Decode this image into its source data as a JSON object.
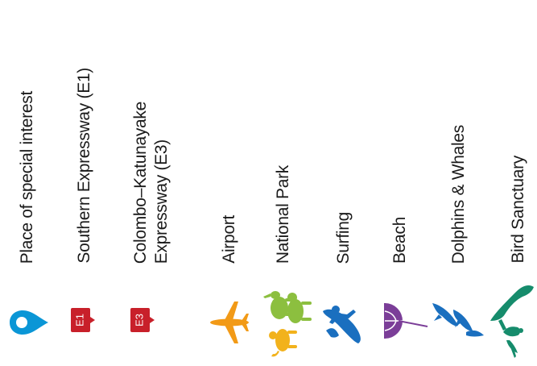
{
  "legend": {
    "items": [
      {
        "label": "Place of special interest",
        "icon": "map-pin-icon",
        "color": "#0a96d6"
      },
      {
        "label": "Southern Expressway (E1)",
        "icon": "e1-shield-icon",
        "color": "#c8202a",
        "badge": "E1"
      },
      {
        "label": "Colombo–Katunayake\nExpressway (E3)",
        "icon": "e3-shield-icon",
        "color": "#c8202a",
        "badge": "E3"
      },
      {
        "label": "Airport",
        "icon": "airplane-icon",
        "color": "#f29a17"
      },
      {
        "label": "National Park",
        "icon": "wildlife-icon",
        "color": "#8cbf3f"
      },
      {
        "label": "Surfing",
        "icon": "surfer-icon",
        "color": "#1a6fbf"
      },
      {
        "label": "Beach",
        "icon": "beach-umbrella-icon",
        "color": "#7b3e98"
      },
      {
        "label": "Dolphins & Whales",
        "icon": "dolphins-icon",
        "color": "#1a6fbf"
      },
      {
        "label": "Bird Sanctuary",
        "icon": "bird-icon",
        "color": "#168c6c"
      }
    ]
  }
}
